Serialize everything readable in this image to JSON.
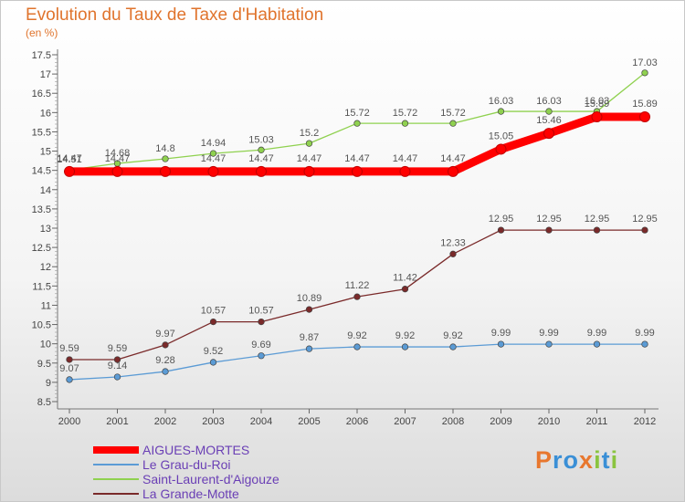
{
  "chart_data": {
    "type": "line",
    "title": "Evolution du Taux de Taxe d'Habitation",
    "subtitle": "(en %)",
    "xlabel": "",
    "ylabel": "",
    "ylim": [
      8.5,
      17.5
    ],
    "yticks": [
      "8.5",
      "9",
      "9.5",
      "10",
      "10.5",
      "11",
      "11.5",
      "12",
      "12.5",
      "13",
      "13.5",
      "14",
      "14.5",
      "15",
      "15.5",
      "16",
      "16.5",
      "17",
      "17.5"
    ],
    "categories": [
      "2000",
      "2001",
      "2002",
      "2003",
      "2004",
      "2005",
      "2006",
      "2007",
      "2008",
      "2009",
      "2010",
      "2011",
      "2012"
    ],
    "grid": false,
    "legend_position": "bottom-left",
    "series": [
      {
        "name": "AIGUES-MORTES",
        "color": "#ff0000",
        "values": [
          14.47,
          14.47,
          14.47,
          14.47,
          14.47,
          14.47,
          14.47,
          14.47,
          14.47,
          15.05,
          15.46,
          15.89,
          15.89
        ],
        "labels": [
          "14.47",
          "14.47",
          "",
          "14.47",
          "14.47",
          "14.47",
          "14.47",
          "14.47",
          "14.47",
          "15.05",
          "15.46",
          "15.89",
          "15.89"
        ]
      },
      {
        "name": "Le Grau-du-Roi",
        "color": "#5b9bd5",
        "values": [
          9.07,
          9.14,
          9.28,
          9.52,
          9.69,
          9.87,
          9.92,
          9.92,
          9.92,
          9.99,
          9.99,
          9.99,
          9.99
        ],
        "labels": [
          "9.07",
          "9.14",
          "9.28",
          "9.52",
          "9.69",
          "9.87",
          "9.92",
          "9.92",
          "9.92",
          "9.99",
          "9.99",
          "9.99",
          "9.99"
        ]
      },
      {
        "name": "Saint-Laurent-d'Aigouze",
        "color": "#8fd14f",
        "values": [
          14.51,
          14.68,
          14.8,
          14.94,
          15.03,
          15.2,
          15.72,
          15.72,
          15.72,
          16.03,
          16.03,
          16.03,
          17.03
        ],
        "labels": [
          "14.51",
          "14.68",
          "14.8",
          "14.94",
          "15.03",
          "15.2",
          "15.72",
          "15.72",
          "15.72",
          "16.03",
          "16.03",
          "16.03",
          "17.03"
        ]
      },
      {
        "name": "La Grande-Motte",
        "color": "#7a2a2a",
        "values": [
          9.59,
          9.59,
          9.97,
          10.57,
          10.57,
          10.89,
          11.22,
          11.42,
          12.33,
          12.95,
          12.95,
          12.95,
          12.95
        ],
        "labels": [
          "9.59",
          "9.59",
          "9.97",
          "10.57",
          "10.57",
          "10.89",
          "11.22",
          "11.42",
          "12.33",
          "12.95",
          "12.95",
          "12.95",
          "12.95"
        ]
      }
    ]
  },
  "logo": {
    "text": "Proxiti",
    "letter_colors": [
      "#e8772e",
      "#3a8fd6",
      "#3a8fd6",
      "#e8772e",
      "#8ac43f",
      "#3a8fd6",
      "#8ac43f"
    ]
  }
}
